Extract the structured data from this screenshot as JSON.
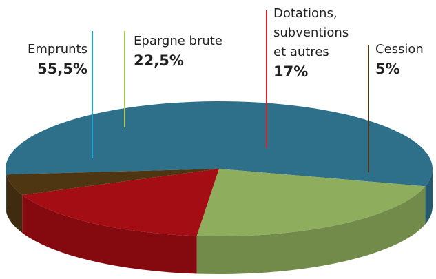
{
  "chart_data": {
    "type": "pie3d",
    "categories": [
      "Emprunts",
      "Epargne brute",
      "Dotations, subventions et autres",
      "Cession"
    ],
    "values": [
      55.5,
      22.5,
      17,
      5
    ],
    "value_labels": [
      "55,5%",
      "22,5%",
      "17%",
      "5%"
    ],
    "colors": [
      "#2e6f8a",
      "#8fae5d",
      "#a50d14",
      "#4f3613"
    ],
    "line_colors": [
      "#1ea7dc",
      "#a6c85a",
      "#d3242b",
      "#4a3518"
    ]
  }
}
